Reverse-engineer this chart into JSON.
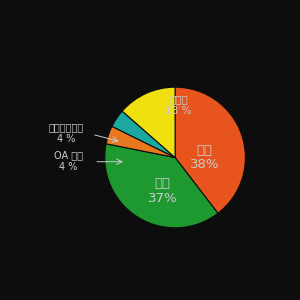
{
  "labels": [
    "空調",
    "照明",
    "OA 機器",
    "エレベーター",
    "その他"
  ],
  "values": [
    38,
    37,
    4,
    4,
    13
  ],
  "colors": [
    "#E8541E",
    "#1E9930",
    "#E87820",
    "#1AA8A0",
    "#F0E010"
  ],
  "background_color": "#0d0d0d",
  "text_color": "#cccccc",
  "startangle": 90,
  "figsize": [
    3.0,
    3.0
  ],
  "dpi": 100
}
